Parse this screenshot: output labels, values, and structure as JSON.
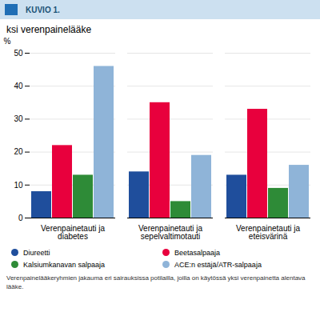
{
  "chart_data": {
    "type": "bar",
    "title": "ksi verenpainelääke",
    "ylabel": "%",
    "annotations": [
      "KUVIO 1.",
      "Verenpainelääkeryhmien jakauma eri sairauksissa potilailla, joilla on käytössä yksi verenpainetta alentava\nlääke."
    ],
    "categories": [
      "Verenpainetauti ja diabetes",
      "Verenpainetauti ja sepelvaltimotauti",
      "Verenpainetauti ja eteisvärinä"
    ],
    "series": [
      {
        "name": "Diureetti",
        "color": "#1f4e9c",
        "values": [
          8,
          14,
          13
        ]
      },
      {
        "name": "Beetasalpaaja",
        "color": "#e8003d",
        "values": [
          22,
          35,
          33
        ]
      },
      {
        "name": "Kalsiumkanavan salpaaja",
        "color": "#2e8b37",
        "values": [
          13,
          5,
          9
        ]
      },
      {
        "name": "ACE:n estäjä/ATR-salpaaja",
        "color": "#8fb4d8",
        "values": [
          46,
          19,
          16
        ]
      }
    ],
    "ylim": [
      0,
      50
    ],
    "yticks": [
      0,
      10,
      20,
      30,
      40,
      50
    ],
    "grid": true,
    "legend": "bottom"
  }
}
